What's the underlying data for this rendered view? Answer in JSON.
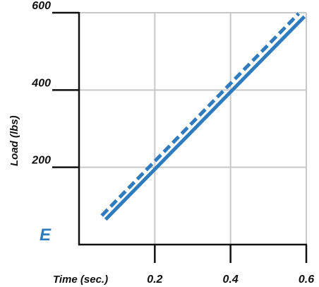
{
  "chart_data": {
    "type": "line",
    "title": "",
    "panel_label": "E",
    "xlabel": "Time (sec.)",
    "ylabel": "Load (lbs)",
    "xlim": [
      0,
      0.6
    ],
    "ylim": [
      0,
      600
    ],
    "x_ticks": [
      0.2,
      0.4,
      0.6
    ],
    "x_tick_labels": [
      "0.2",
      "0.4",
      "0.6"
    ],
    "y_ticks": [
      200,
      400,
      600
    ],
    "y_tick_labels": [
      "200",
      "400",
      "600"
    ],
    "grid": true,
    "colors": {
      "line": "#2E7BBF",
      "grid": "#C8C8C8",
      "axis": "#111111"
    },
    "series": [
      {
        "style": "solid",
        "x": [
          0.07,
          0.595
        ],
        "y": [
          65,
          590
        ]
      },
      {
        "style": "dashed",
        "x": [
          0.06,
          0.58
        ],
        "y": [
          75,
          598
        ]
      }
    ]
  }
}
